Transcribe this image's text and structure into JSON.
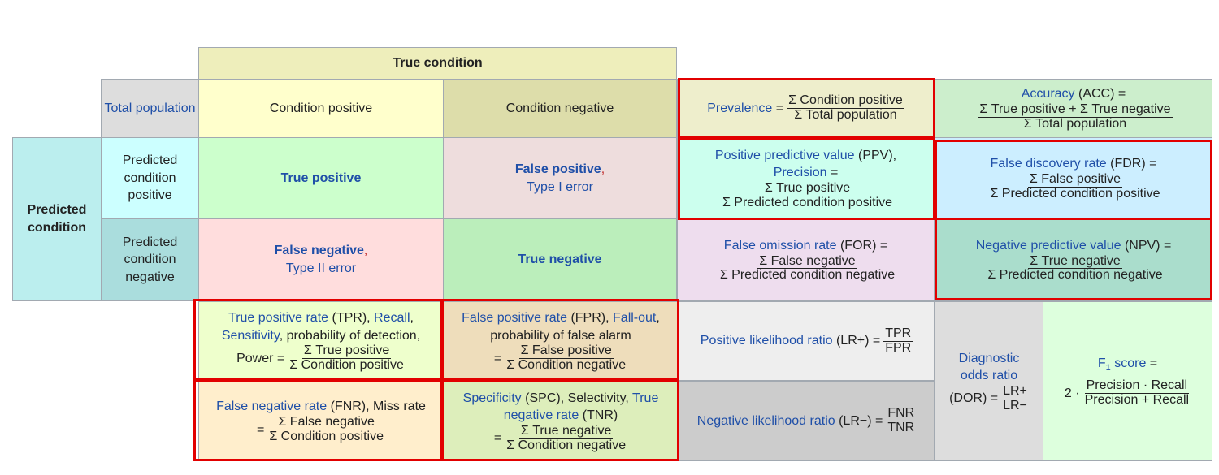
{
  "true_condition": "True condition",
  "total_population": "Total population",
  "condition_positive": "Condition positive",
  "condition_negative": "Condition negative",
  "predicted_condition": "Predicted condition",
  "predicted_condition_positive": "Predicted condition positive",
  "predicted_condition_negative": "Predicted condition negative",
  "true_positive": "True positive",
  "false_positive": "False positive",
  "type_i_error": "Type I error",
  "false_negative": "False negative",
  "type_ii_error": "Type II error",
  "true_negative": "True negative",
  "comma": ",",
  "prevalence": {
    "name": "Prevalence",
    "eq": "=",
    "num": "Σ Condition positive",
    "den": "Σ Total population"
  },
  "accuracy": {
    "name": "Accuracy",
    "abbr": "(ACC) =",
    "num": "Σ True positive + Σ True negative",
    "den": "Σ Total population"
  },
  "ppv": {
    "name": "Positive predictive value",
    "abbr": "(PPV),",
    "name2": "Precision",
    "eq": "=",
    "num": "Σ True positive",
    "den": "Σ Predicted condition positive"
  },
  "fdr": {
    "name": "False discovery rate",
    "abbr": "(FDR) =",
    "num": "Σ False positive",
    "den": "Σ Predicted condition positive"
  },
  "for": {
    "name": "False omission rate",
    "abbr": "(FOR) =",
    "num": "Σ False negative",
    "den": "Σ Predicted condition negative"
  },
  "npv": {
    "name": "Negative predictive value",
    "abbr": "(NPV) =",
    "num": "Σ True negative",
    "den": "Σ Predicted condition negative"
  },
  "tpr": {
    "name": "True positive rate",
    "abbr": "(TPR),",
    "recall": "Recall",
    "sensitivity": "Sensitivity",
    "rest": "probability of detection,",
    "power": "Power",
    "eq": "=",
    "num": "Σ True positive",
    "den": "Σ Condition positive"
  },
  "fpr": {
    "name": "False positive rate",
    "abbr": "(FPR),",
    "fallout": "Fall-out",
    "rest": "probability of false alarm",
    "eq": "=",
    "num": "Σ False positive",
    "den": "Σ Condition negative"
  },
  "fnr": {
    "name": "False negative rate",
    "abbr": "(FNR), Miss rate",
    "eq": "=",
    "num": "Σ False negative",
    "den": "Σ Condition positive"
  },
  "spc": {
    "name": "Specificity",
    "abbr": "(SPC), Selectivity,",
    "tnr": "True negative rate",
    "tnr_abbr": "(TNR)",
    "eq": "=",
    "num": "Σ True negative",
    "den": "Σ Condition negative"
  },
  "lrp": {
    "name": "Positive likelihood ratio",
    "abbr": "(LR+) =",
    "num": "TPR",
    "den": "FPR"
  },
  "lrn": {
    "name": "Negative likelihood ratio",
    "abbr": "(LR−) =",
    "num": "FNR",
    "den": "TNR"
  },
  "dor": {
    "name1": "Diagnostic",
    "name2": "odds ratio",
    "abbr": "(DOR) =",
    "num": "LR+",
    "den": "LR−"
  },
  "f1": {
    "name": "F",
    "sub": "1",
    "name_rest": "score",
    "eq": "=",
    "lead": "2 ·",
    "num": "Precision · Recall",
    "den": "Precision + Recall"
  }
}
